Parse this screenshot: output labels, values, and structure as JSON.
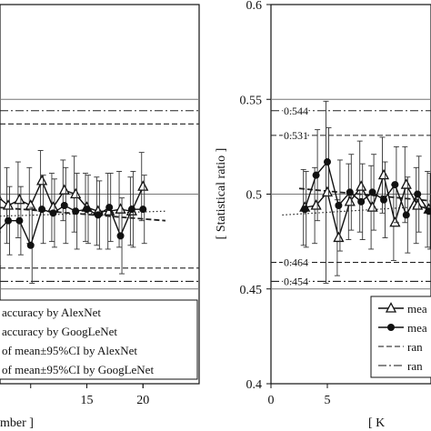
{
  "chart_data": [
    {
      "type": "line",
      "panel": "left",
      "xlabel": "mber ]",
      "x_ticks": [
        15,
        20
      ],
      "xlim": [
        5,
        25
      ],
      "ylim": [
        0.4,
        0.6
      ],
      "grid": false,
      "hlines": [
        {
          "y": 0.55,
          "style": "solid"
        },
        {
          "y": 0.5,
          "style": "solid"
        },
        {
          "y": 0.45,
          "style": "solid"
        },
        {
          "y": 0.544,
          "style": "dashdot"
        },
        {
          "y": 0.454,
          "style": "dashdot"
        },
        {
          "y": 0.537,
          "style": "dashed"
        },
        {
          "y": 0.461,
          "style": "dashed"
        }
      ],
      "series": [
        {
          "marker": "triangle",
          "x": [
            5,
            6,
            7,
            8,
            9,
            10,
            11,
            12,
            13,
            14,
            15,
            16,
            17,
            18,
            19,
            20
          ],
          "y": [
            0.486,
            0.496,
            0.499,
            0.494,
            0.497,
            0.494,
            0.507,
            0.493,
            0.502,
            0.5,
            0.493,
            0.491,
            0.491,
            0.492,
            0.491,
            0.504
          ],
          "err": [
            0.02,
            0.02,
            0.02,
            0.02,
            0.02,
            0.02,
            0.016,
            0.018,
            0.016,
            0.02,
            0.018,
            0.018,
            0.02,
            0.02,
            0.018,
            0.018
          ]
        },
        {
          "marker": "circle",
          "x": [
            5,
            6,
            7,
            8,
            9,
            10,
            11,
            12,
            13,
            14,
            15,
            16,
            17,
            18,
            19,
            20
          ],
          "y": [
            0.478,
            0.488,
            0.48,
            0.486,
            0.486,
            0.473,
            0.492,
            0.49,
            0.494,
            0.491,
            0.492,
            0.489,
            0.493,
            0.478,
            0.492,
            0.492
          ],
          "err": [
            0.018,
            0.018,
            0.018,
            0.018,
            0.018,
            0.02,
            0.018,
            0.018,
            0.02,
            0.02,
            0.018,
            0.018,
            0.018,
            0.02,
            0.02,
            0.018
          ]
        }
      ],
      "trend_lines": [
        {
          "style": "dashed",
          "x": [
            5,
            22
          ],
          "y": [
            0.494,
            0.486
          ]
        },
        {
          "style": "dotted",
          "x": [
            5,
            22
          ],
          "y": [
            0.488,
            0.491
          ]
        }
      ],
      "legend": {
        "position": "bottom-left",
        "entries": [
          {
            "label": "accuracy by AlexNet",
            "style": "triangle"
          },
          {
            "label": "accuracy by GoogLeNet",
            "style": "circle"
          },
          {
            "label": "of mean±95%CI by AlexNet",
            "style": "dashed"
          },
          {
            "label": "of mean±95%CI by GoogLeNet",
            "style": "dashdot"
          }
        ]
      }
    },
    {
      "type": "line",
      "panel": "right",
      "ylabel": "[ Statistical ratio ]",
      "xlabel": "[ K",
      "xlim": [
        0,
        15
      ],
      "ylim": [
        0.4,
        0.6
      ],
      "x_ticks": [
        0,
        5
      ],
      "y_ticks": [
        0.4,
        0.45,
        0.5,
        0.55,
        0.6
      ],
      "y_tick_labels": [
        "0.4",
        "0.45",
        "0.5",
        "0.55",
        "0.6"
      ],
      "grid": false,
      "hlines": [
        {
          "y": 0.55,
          "style": "solid"
        },
        {
          "y": 0.5,
          "style": "solid"
        },
        {
          "y": 0.45,
          "style": "solid"
        },
        {
          "y": 0.544,
          "style": "dashdot",
          "label": "0.544"
        },
        {
          "y": 0.454,
          "style": "dashdot",
          "label": "0.454"
        },
        {
          "y": 0.531,
          "style": "dashed",
          "label": "0.531"
        },
        {
          "y": 0.464,
          "style": "dashed",
          "label": "0.464"
        }
      ],
      "series": [
        {
          "marker": "triangle",
          "x": [
            3,
            4,
            5,
            6,
            7,
            8,
            9,
            10,
            11,
            12,
            13,
            14
          ],
          "y": [
            0.493,
            0.494,
            0.501,
            0.477,
            0.496,
            0.504,
            0.493,
            0.51,
            0.485,
            0.505,
            0.494,
            0.492
          ],
          "err": [
            0.02,
            0.02,
            0.048,
            0.02,
            0.02,
            0.024,
            0.022,
            0.02,
            0.02,
            0.02,
            0.02,
            0.02
          ]
        },
        {
          "marker": "circle",
          "x": [
            3,
            4,
            5,
            6,
            7,
            8,
            9,
            10,
            11,
            12,
            13,
            14
          ],
          "y": [
            0.492,
            0.51,
            0.517,
            0.494,
            0.501,
            0.496,
            0.501,
            0.497,
            0.505,
            0.489,
            0.5,
            0.491
          ],
          "err": [
            0.02,
            0.024,
            0.018,
            0.024,
            0.02,
            0.02,
            0.02,
            0.02,
            0.02,
            0.02,
            0.02,
            0.02
          ]
        }
      ],
      "trend_lines": [
        {
          "style": "dashed",
          "x": [
            2.5,
            15
          ],
          "y": [
            0.503,
            0.496
          ]
        },
        {
          "style": "dotted",
          "x": [
            1,
            15
          ],
          "y": [
            0.489,
            0.494
          ]
        }
      ],
      "legend": {
        "position": "bottom-right",
        "entries": [
          {
            "label": "mea",
            "style": "triangle"
          },
          {
            "label": "mea",
            "style": "circle"
          },
          {
            "label": "ran",
            "style": "dashed"
          },
          {
            "label": "ran",
            "style": "dashdot"
          }
        ]
      }
    }
  ]
}
